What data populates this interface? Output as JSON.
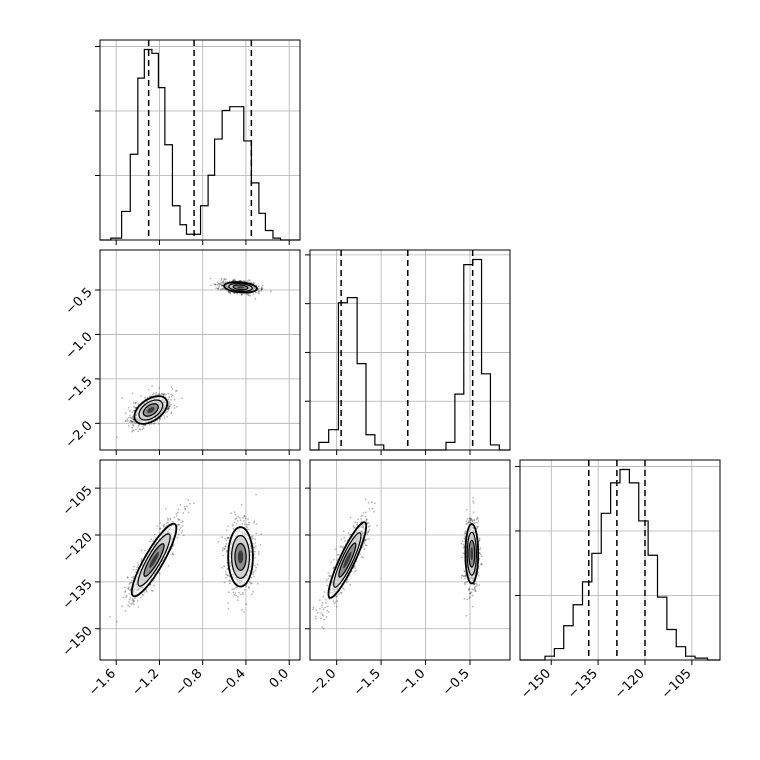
{
  "chart_data": {
    "type": "corner",
    "parameters": [
      "",
      "",
      ""
    ],
    "grid": true,
    "histograms": [
      {
        "param_index": 0,
        "range": [
          -1.75,
          0.1
        ],
        "edges": [
          -1.75,
          -1.65,
          -1.55,
          -1.47,
          -1.4,
          -1.34,
          -1.27,
          -1.21,
          -1.15,
          -1.08,
          -1.01,
          -0.95,
          -0.89,
          -0.82,
          -0.75,
          -0.69,
          -0.62,
          -0.55,
          -0.48,
          -0.42,
          -0.35,
          -0.28,
          -0.22,
          -0.15,
          -0.08,
          -0.02,
          0.05,
          0.1
        ],
        "counts": [
          0.0,
          0.01,
          0.15,
          0.45,
          0.85,
          1.0,
          0.98,
          0.8,
          0.5,
          0.18,
          0.08,
          0.03,
          0.03,
          0.18,
          0.34,
          0.53,
          0.68,
          0.7,
          0.7,
          0.52,
          0.3,
          0.14,
          0.05,
          0.01,
          0.0,
          0.0,
          0.0
        ],
        "quantiles": [
          -1.3,
          -0.88,
          -0.35
        ],
        "y_ticks": 3
      },
      {
        "param_index": 1,
        "range": [
          -2.3,
          -0.05
        ],
        "edges": [
          -2.3,
          -2.2,
          -2.09,
          -1.98,
          -1.88,
          -1.77,
          -1.67,
          -1.57,
          -1.47,
          -1.37,
          -1.27,
          -1.17,
          -1.07,
          -0.97,
          -0.87,
          -0.77,
          -0.67,
          -0.57,
          -0.47,
          -0.37,
          -0.27,
          -0.17,
          -0.05
        ],
        "counts": [
          0.0,
          0.03,
          0.08,
          0.58,
          0.6,
          0.34,
          0.06,
          0.02,
          0.0,
          0.0,
          0.0,
          0.0,
          0.0,
          0.0,
          0.0,
          0.03,
          0.22,
          0.73,
          0.75,
          0.3,
          0.02,
          0.0
        ],
        "quantiles": [
          -1.95,
          -1.2,
          -0.47
        ],
        "y_ticks": 4
      },
      {
        "param_index": 2,
        "range": [
          -160,
          -96
        ],
        "edges": [
          -160,
          -156,
          -152,
          -149,
          -146,
          -143,
          -140,
          -137,
          -134,
          -131,
          -128,
          -125,
          -122,
          -119,
          -116,
          -113,
          -110,
          -107,
          -104,
          -100,
          -96
        ],
        "counts": [
          0.0,
          0.0,
          0.02,
          0.06,
          0.18,
          0.29,
          0.41,
          0.56,
          0.77,
          0.93,
          1.0,
          0.93,
          0.73,
          0.55,
          0.33,
          0.16,
          0.07,
          0.02,
          0.01,
          0.0
        ],
        "quantiles": [
          -138,
          -129,
          -120
        ],
        "y_ticks": 3
      }
    ],
    "scatter_panels": [
      {
        "x_param": 0,
        "y_param": 1,
        "xlim": [
          -1.75,
          0.1
        ],
        "ylim": [
          -2.3,
          -0.05
        ],
        "clusters": [
          {
            "center": [
              -1.28,
              -1.85
            ],
            "spread": [
              0.14,
              0.22
            ],
            "angle_deg": 35,
            "n": 700
          },
          {
            "center": [
              -0.45,
              -0.47
            ],
            "spread": [
              0.16,
              0.08
            ],
            "angle_deg": -5,
            "n": 700
          }
        ]
      },
      {
        "x_param": 0,
        "y_param": 2,
        "xlim": [
          -1.75,
          0.1
        ],
        "ylim": [
          -160,
          -96
        ],
        "clusters": [
          {
            "center": [
              -1.25,
              -128
            ],
            "spread": [
              0.12,
              14
            ],
            "angle_deg": 60,
            "n": 700
          },
          {
            "center": [
              -0.45,
              -127
            ],
            "spread": [
              0.16,
              10
            ],
            "angle_deg": 90,
            "n": 700
          }
        ]
      },
      {
        "x_param": 1,
        "y_param": 2,
        "xlim": [
          -2.3,
          -0.05
        ],
        "ylim": [
          -160,
          -96
        ],
        "clusters": [
          {
            "center": [
              -1.88,
              -128
            ],
            "spread": [
              0.12,
              14
            ],
            "angle_deg": 65,
            "n": 700
          },
          {
            "center": [
              -0.48,
              -126
            ],
            "spread": [
              0.1,
              10
            ],
            "angle_deg": 90,
            "n": 700
          }
        ]
      }
    ],
    "axis_ticks": {
      "p0_x": [
        "−1.6",
        "−1.2",
        "−0.8",
        "−0.4",
        "0.0"
      ],
      "p0_x_values": [
        -1.6,
        -1.2,
        -0.8,
        -0.4,
        0.0
      ],
      "p1_y": [
        "−0.5",
        "−1.0",
        "−1.5",
        "−2.0"
      ],
      "p1_y_values": [
        -0.5,
        -1.0,
        -1.5,
        -2.0
      ],
      "p1_x": [
        "−2.0",
        "−1.5",
        "−1.0",
        "−0.5"
      ],
      "p1_x_values": [
        -2.0,
        -1.5,
        -1.0,
        -0.5
      ],
      "p2_y": [
        "−105",
        "−120",
        "−135",
        "−150"
      ],
      "p2_y_values": [
        -105,
        -120,
        -135,
        -150
      ],
      "p2_x": [
        "−150",
        "−135",
        "−120",
        "−105"
      ],
      "p2_x_values": [
        -150,
        -135,
        -120,
        -105
      ]
    }
  }
}
